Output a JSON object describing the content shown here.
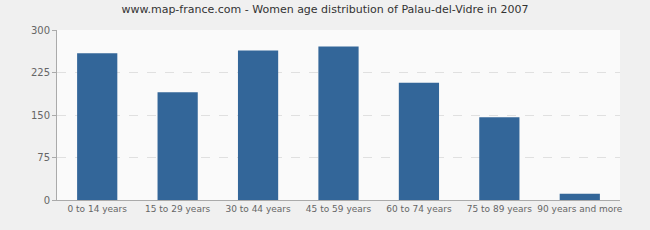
{
  "chart_data": {
    "type": "bar",
    "title": "www.map-france.com - Women age distribution of Palau-del-Vidre in 2007",
    "categories": [
      "0 to 14 years",
      "15 to 29 years",
      "30 to 44 years",
      "45 to 59 years",
      "60 to 74 years",
      "75 to 89 years",
      "90 years and more"
    ],
    "values": [
      259,
      190,
      264,
      271,
      207,
      146,
      11
    ],
    "color": "#336699",
    "ylim": [
      0,
      300
    ],
    "yticks": [
      0,
      75,
      150,
      225,
      300
    ],
    "grid": true
  }
}
